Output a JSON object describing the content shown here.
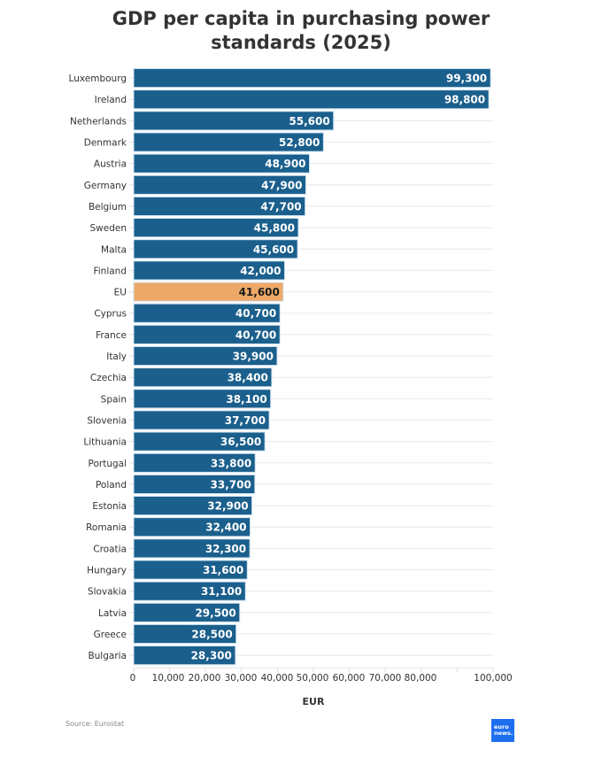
{
  "chart_data": {
    "type": "bar",
    "orientation": "horizontal",
    "title": "GDP per capita in purchasing power standards (2025)",
    "title_lines": [
      "GDP per capita in purchasing power",
      "standards (2025)"
    ],
    "xlabel": "EUR",
    "ylabel": "",
    "xlim": [
      0,
      100000
    ],
    "grid": true,
    "x_ticks": [
      0,
      10000,
      20000,
      30000,
      40000,
      50000,
      60000,
      70000,
      80000,
      90000,
      100000
    ],
    "x_tick_labels": [
      "0",
      "10,000",
      "20,000",
      "30,000",
      "40,000",
      "50,000",
      "60,000",
      "70,000",
      "80,000",
      "",
      "100,000"
    ],
    "categories": [
      "Luxembourg",
      "Ireland",
      "Netherlands",
      "Denmark",
      "Austria",
      "Germany",
      "Belgium",
      "Sweden",
      "Malta",
      "Finland",
      "EU",
      "Cyprus",
      "France",
      "Italy",
      "Czechia",
      "Spain",
      "Slovenia",
      "Lithuania",
      "Portugal",
      "Poland",
      "Estonia",
      "Romania",
      "Croatia",
      "Hungary",
      "Slovakia",
      "Latvia",
      "Greece",
      "Bulgaria"
    ],
    "values": [
      99300,
      98800,
      55600,
      52800,
      48900,
      47900,
      47700,
      45800,
      45600,
      42000,
      41600,
      40700,
      40700,
      39900,
      38400,
      38100,
      37700,
      36500,
      33800,
      33700,
      32900,
      32400,
      32300,
      31600,
      31100,
      29500,
      28500,
      28300
    ],
    "value_labels": [
      "99,300",
      "98,800",
      "55,600",
      "52,800",
      "48,900",
      "47,900",
      "47,700",
      "45,800",
      "45,600",
      "42,000",
      "41,600",
      "40,700",
      "40,700",
      "39,900",
      "38,400",
      "38,100",
      "37,700",
      "36,500",
      "33,800",
      "33,700",
      "32,900",
      "32,400",
      "32,300",
      "31,600",
      "31,100",
      "29,500",
      "28,500",
      "28,300"
    ],
    "highlight": "EU",
    "colors": {
      "bar": "#1b5f8c",
      "highlight": "#eda867",
      "bar_border": "#cfe3f2",
      "grid": "#e8e8e8"
    },
    "legend": "none"
  },
  "footer": {
    "source": "Source: Eurostat",
    "logo_lines": [
      "euro",
      "news."
    ]
  }
}
